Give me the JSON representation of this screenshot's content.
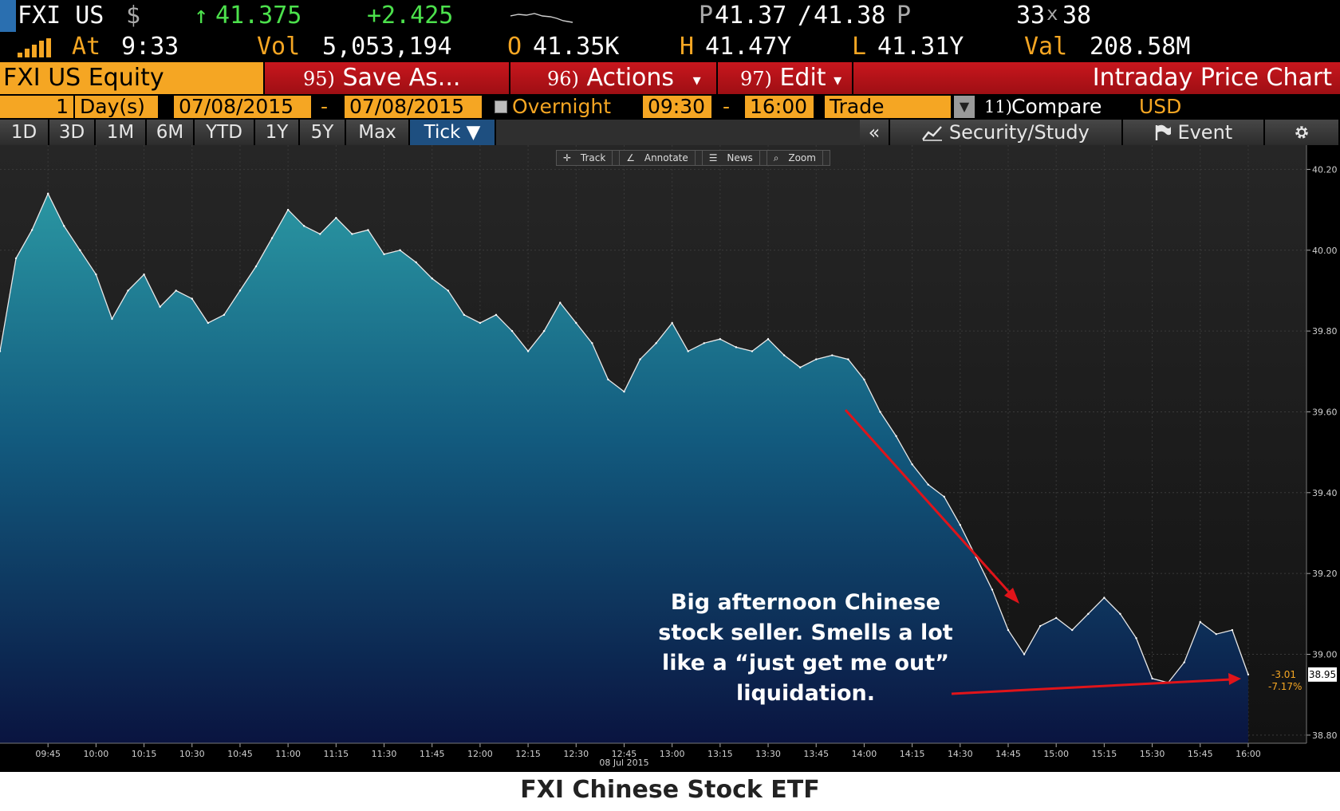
{
  "quote": {
    "ticker": "FXI US",
    "currency_symbol": "$",
    "last_price": "41.375",
    "up_arrow": "↑",
    "change": "+2.425",
    "bid_ask_label_p1": "P",
    "bid": "41.37",
    "ask": "41.38",
    "bid_ask_label_p2": "P",
    "size_bid": "33",
    "size_x": "x",
    "size_ask": "38",
    "at_label": "At",
    "time": "9:33",
    "vol_label": "Vol",
    "volume": "5,053,194",
    "open_label": "O",
    "open": "41.35K",
    "high_label": "H",
    "high": "41.47Y",
    "low_label": "L",
    "low": "41.31Y",
    "val_label": "Val",
    "value": "208.58M"
  },
  "title_bar": {
    "security": "FXI US Equity",
    "save_num": "95)",
    "save_label": "Save As...",
    "actions_num": "96)",
    "actions_label": "Actions",
    "edit_num": "97)",
    "edit_label": "Edit",
    "dropdown_arrow": "▾",
    "function_title": "Intraday Price Chart"
  },
  "controls": {
    "period_count": "1",
    "period_unit": "Day(s)",
    "start_date": "07/08/2015",
    "dash": "-",
    "end_date": "07/08/2015",
    "overnight_label": "Overnight",
    "start_time": "09:30",
    "end_time": "16:00",
    "event_type": "Trade",
    "compare_num": "11)",
    "compare_label": "Compare",
    "currency": "USD"
  },
  "tabs": [
    "1D",
    "3D",
    "1M",
    "6M",
    "YTD",
    "1Y",
    "5Y",
    "Max",
    "Tick ▼"
  ],
  "toolbar": {
    "collapse": "«",
    "security_study": "Security/Study",
    "event": "Event",
    "settings_icon": "gear-icon"
  },
  "mini_toolbar": [
    "Track",
    "Annotate",
    "News",
    "Zoom"
  ],
  "annotation_lines": [
    "Big afternoon Chinese",
    "stock seller.  Smells a lot",
    "like a “just get me out”",
    "liquidation."
  ],
  "caption": "FXI Chinese Stock ETF",
  "chart_data": {
    "type": "area",
    "date_label": "08 Jul 2015",
    "x_ticks": [
      "09:45",
      "10:00",
      "10:15",
      "10:30",
      "10:45",
      "11:00",
      "11:15",
      "11:30",
      "11:45",
      "12:00",
      "12:15",
      "12:30",
      "12:45",
      "13:00",
      "13:15",
      "13:30",
      "13:45",
      "14:00",
      "14:15",
      "14:30",
      "14:45",
      "15:00",
      "15:15",
      "15:30",
      "15:45",
      "16:00"
    ],
    "y_ticks": [
      "40.20",
      "40.00",
      "39.80",
      "39.60",
      "39.40",
      "39.20",
      "39.00",
      "38.80"
    ],
    "ylim": [
      38.78,
      40.26
    ],
    "last_value_label": "38.95",
    "change_label": "-3.01",
    "pct_label": "-7.17%",
    "x": [
      "09:30",
      "09:35",
      "09:40",
      "09:45",
      "09:50",
      "09:55",
      "10:00",
      "10:05",
      "10:10",
      "10:15",
      "10:20",
      "10:25",
      "10:30",
      "10:35",
      "10:40",
      "10:45",
      "10:50",
      "10:55",
      "11:00",
      "11:05",
      "11:10",
      "11:15",
      "11:20",
      "11:25",
      "11:30",
      "11:35",
      "11:40",
      "11:45",
      "11:50",
      "11:55",
      "12:00",
      "12:05",
      "12:10",
      "12:15",
      "12:20",
      "12:25",
      "12:30",
      "12:35",
      "12:40",
      "12:45",
      "12:50",
      "12:55",
      "13:00",
      "13:05",
      "13:10",
      "13:15",
      "13:20",
      "13:25",
      "13:30",
      "13:35",
      "13:40",
      "13:45",
      "13:50",
      "13:55",
      "14:00",
      "14:05",
      "14:10",
      "14:15",
      "14:20",
      "14:25",
      "14:30",
      "14:35",
      "14:40",
      "14:45",
      "14:50",
      "14:55",
      "15:00",
      "15:05",
      "15:10",
      "15:15",
      "15:20",
      "15:25",
      "15:30",
      "15:35",
      "15:40",
      "15:45",
      "15:50",
      "15:55",
      "16:00"
    ],
    "values": [
      39.75,
      39.98,
      40.05,
      40.14,
      40.06,
      40.0,
      39.94,
      39.83,
      39.9,
      39.94,
      39.86,
      39.9,
      39.88,
      39.82,
      39.84,
      39.9,
      39.96,
      40.03,
      40.1,
      40.06,
      40.04,
      40.08,
      40.04,
      40.05,
      39.99,
      40.0,
      39.97,
      39.93,
      39.9,
      39.84,
      39.82,
      39.84,
      39.8,
      39.75,
      39.8,
      39.87,
      39.82,
      39.77,
      39.68,
      39.65,
      39.73,
      39.77,
      39.82,
      39.75,
      39.77,
      39.78,
      39.76,
      39.75,
      39.78,
      39.74,
      39.71,
      39.73,
      39.74,
      39.73,
      39.68,
      39.6,
      39.54,
      39.47,
      39.42,
      39.39,
      39.32,
      39.24,
      39.16,
      39.06,
      39.0,
      39.07,
      39.09,
      39.06,
      39.1,
      39.14,
      39.1,
      39.04,
      38.94,
      38.93,
      38.98,
      39.08,
      39.05,
      39.06,
      38.95
    ]
  }
}
